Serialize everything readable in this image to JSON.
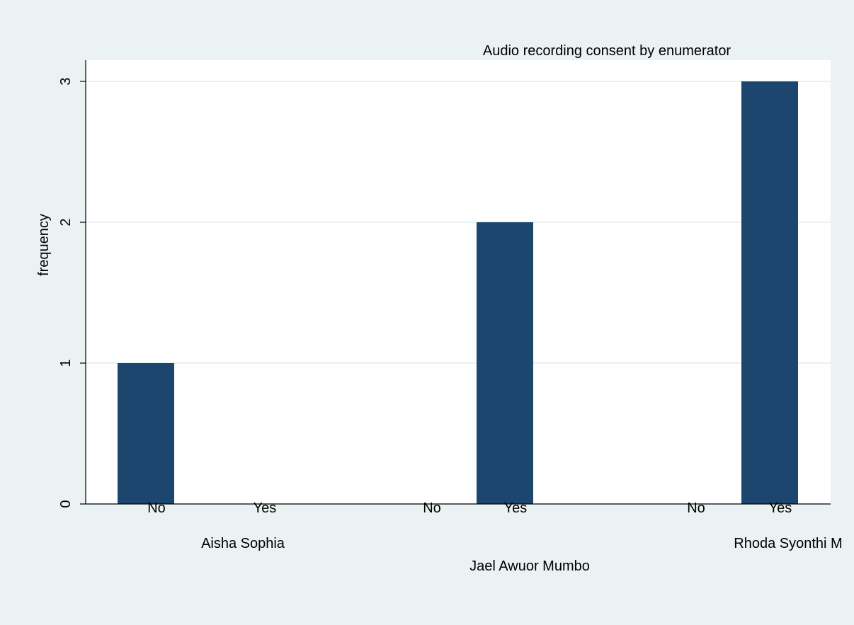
{
  "chart_data": {
    "type": "bar",
    "title": "Audio recording consent by enumerator",
    "ylabel": "frequency",
    "xlabel": "",
    "ylim": [
      0,
      3
    ],
    "yticks": [
      0,
      1,
      2,
      3
    ],
    "grid": true,
    "groups": [
      {
        "name": "Aisha Sophia",
        "categories": [
          "No",
          "Yes"
        ],
        "values": [
          1,
          0
        ]
      },
      {
        "name": "Jael Awuor Mumbo",
        "categories": [
          "No",
          "Yes"
        ],
        "values": [
          0,
          2
        ]
      },
      {
        "name": "Rhoda Syonthi M",
        "categories": [
          "No",
          "Yes"
        ],
        "values": [
          0,
          3
        ]
      }
    ],
    "colors": {
      "bar": "#1c466d",
      "background": "#eaf2f3",
      "plot": "#ffffff",
      "grid": "#e8f0f1"
    }
  }
}
